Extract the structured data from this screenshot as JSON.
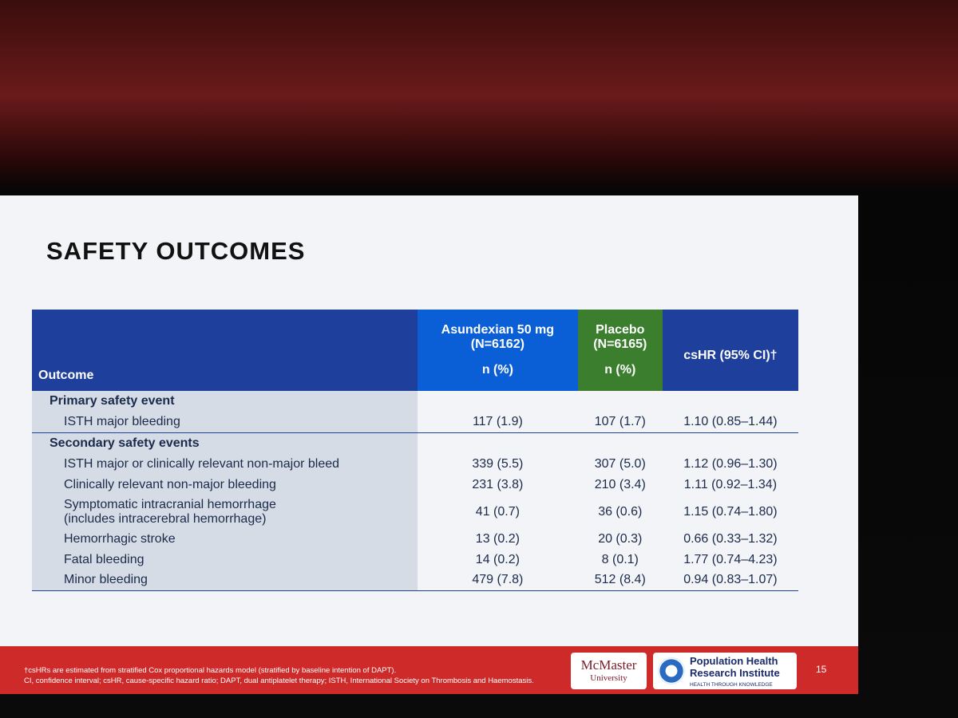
{
  "slide": {
    "title": "SAFETY OUTCOMES",
    "table": {
      "header": [
        {
          "name": [
            "Outcome"
          ],
          "unit": null
        },
        {
          "name": [
            "Asundexian 50 mg",
            "(N=6162)"
          ],
          "unit": "n (%)"
        },
        {
          "name": [
            "Placebo",
            "(N=6165)"
          ],
          "unit": "n (%)"
        },
        {
          "name": [],
          "unit": "csHR (95% CI)†"
        }
      ],
      "sections": [
        {
          "label": "Primary safety event",
          "rows": [
            {
              "label": [
                "ISTH major bleeding"
              ],
              "values": [
                "117 (1.9)",
                "107 (1.7)",
                "1.10 (0.85–1.44)"
              ]
            }
          ]
        },
        {
          "label": "Secondary safety events",
          "rows": [
            {
              "label": [
                "ISTH major or clinically relevant non-major bleed"
              ],
              "values": [
                "339 (5.5)",
                "307 (5.0)",
                "1.12 (0.96–1.30)"
              ]
            },
            {
              "label": [
                "Clinically relevant non-major bleeding"
              ],
              "values": [
                "231 (3.8)",
                "210 (3.4)",
                "1.11 (0.92–1.34)"
              ]
            },
            {
              "label": [
                "Symptomatic intracranial hemorrhage",
                "(includes intracerebral hemorrhage)"
              ],
              "values": [
                "41 (0.7)",
                "36 (0.6)",
                "1.15 (0.74–1.80)"
              ]
            },
            {
              "label": [
                "Hemorrhagic stroke"
              ],
              "values": [
                "13 (0.2)",
                "20 (0.3)",
                "0.66 (0.33–1.32)"
              ]
            },
            {
              "label": [
                "Fatal bleeding"
              ],
              "values": [
                "14 (0.2)",
                "8 (0.1)",
                "1.77 (0.74–4.23)"
              ]
            },
            {
              "label": [
                "Minor bleeding"
              ],
              "values": [
                "479 (7.8)",
                "512 (8.4)",
                "0.94 (0.83–1.07)"
              ]
            }
          ]
        }
      ]
    },
    "footnotes": [
      "†csHRs are estimated from stratified Cox proportional hazards model (stratified by baseline intention of DAPT).",
      "CI, confidence interval; csHR, cause-specific hazard ratio; DAPT, dual antiplatelet therapy; ISTH, International Society on Thrombosis and Haemostasis."
    ],
    "logos": {
      "mcmaster": [
        "McMaster",
        "University"
      ],
      "phri": [
        "Population Health",
        "Research Institute"
      ],
      "phri_tagline": "HEALTH THROUGH KNOWLEDGE"
    },
    "page_number": "15"
  }
}
